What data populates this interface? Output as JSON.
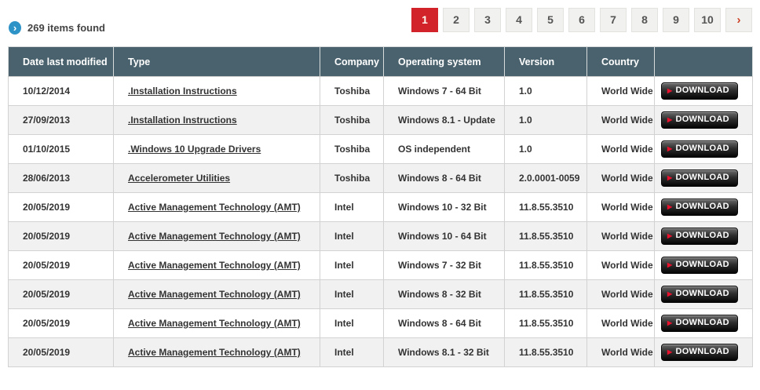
{
  "header": {
    "items_found": "269 items found",
    "bullet_icon": "chevron-right-circle"
  },
  "pagination": {
    "pages": [
      "1",
      "2",
      "3",
      "4",
      "5",
      "6",
      "7",
      "8",
      "9",
      "10"
    ],
    "active_page": "1",
    "next_label": "›"
  },
  "table": {
    "columns": [
      "Date last modified",
      "Type",
      "Company",
      "Operating system",
      "Version",
      "Country",
      ""
    ],
    "download_label": "DOWNLOAD",
    "rows": [
      {
        "date": "10/12/2014",
        "type": ".Installation Instructions",
        "company": "Toshiba",
        "os": "Windows 7 - 64 Bit",
        "version": "1.0",
        "country": "World Wide"
      },
      {
        "date": "27/09/2013",
        "type": ".Installation Instructions",
        "company": "Toshiba",
        "os": "Windows 8.1 - Update",
        "version": "1.0",
        "country": "World Wide"
      },
      {
        "date": "01/10/2015",
        "type": ".Windows 10 Upgrade Drivers",
        "company": "Toshiba",
        "os": "OS independent",
        "version": "1.0",
        "country": "World Wide"
      },
      {
        "date": "28/06/2013",
        "type": "Accelerometer Utilities",
        "company": "Toshiba",
        "os": "Windows 8 - 64 Bit",
        "version": "2.0.0001-0059",
        "country": "World Wide"
      },
      {
        "date": "20/05/2019",
        "type": "Active Management Technology (AMT)",
        "company": "Intel",
        "os": "Windows 10 - 32 Bit",
        "version": "11.8.55.3510",
        "country": "World Wide"
      },
      {
        "date": "20/05/2019",
        "type": "Active Management Technology (AMT)",
        "company": "Intel",
        "os": "Windows 10 - 64 Bit",
        "version": "11.8.55.3510",
        "country": "World Wide"
      },
      {
        "date": "20/05/2019",
        "type": "Active Management Technology (AMT)",
        "company": "Intel",
        "os": "Windows 7 - 32 Bit",
        "version": "11.8.55.3510",
        "country": "World Wide"
      },
      {
        "date": "20/05/2019",
        "type": "Active Management Technology (AMT)",
        "company": "Intel",
        "os": "Windows 8 - 32 Bit",
        "version": "11.8.55.3510",
        "country": "World Wide"
      },
      {
        "date": "20/05/2019",
        "type": "Active Management Technology (AMT)",
        "company": "Intel",
        "os": "Windows 8 - 64 Bit",
        "version": "11.8.55.3510",
        "country": "World Wide"
      },
      {
        "date": "20/05/2019",
        "type": "Active Management Technology (AMT)",
        "company": "Intel",
        "os": "Windows 8.1 - 32 Bit",
        "version": "11.8.55.3510",
        "country": "World Wide"
      }
    ]
  },
  "colors": {
    "accent_red": "#d2232a",
    "table_header_bg": "#4a626e",
    "row_stripe": "#f1f1f1",
    "blue_icon": "#2e93c6",
    "download_arrow_red": "#e8112d"
  }
}
